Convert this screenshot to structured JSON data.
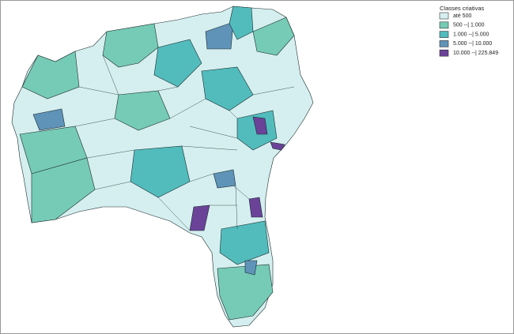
{
  "legend": {
    "title": "Classes criativas",
    "classes": [
      {
        "label": "até 500",
        "color": "#d5eff0"
      },
      {
        "label": "500 --| 1.000",
        "color": "#76cbb6"
      },
      {
        "label": "1.000 --| 5.000",
        "color": "#52bcbd"
      },
      {
        "label": "5.000 --| 10.000",
        "color": "#5f93b8"
      },
      {
        "label": "10.000 --| 225.849",
        "color": "#6a4399"
      }
    ]
  }
}
